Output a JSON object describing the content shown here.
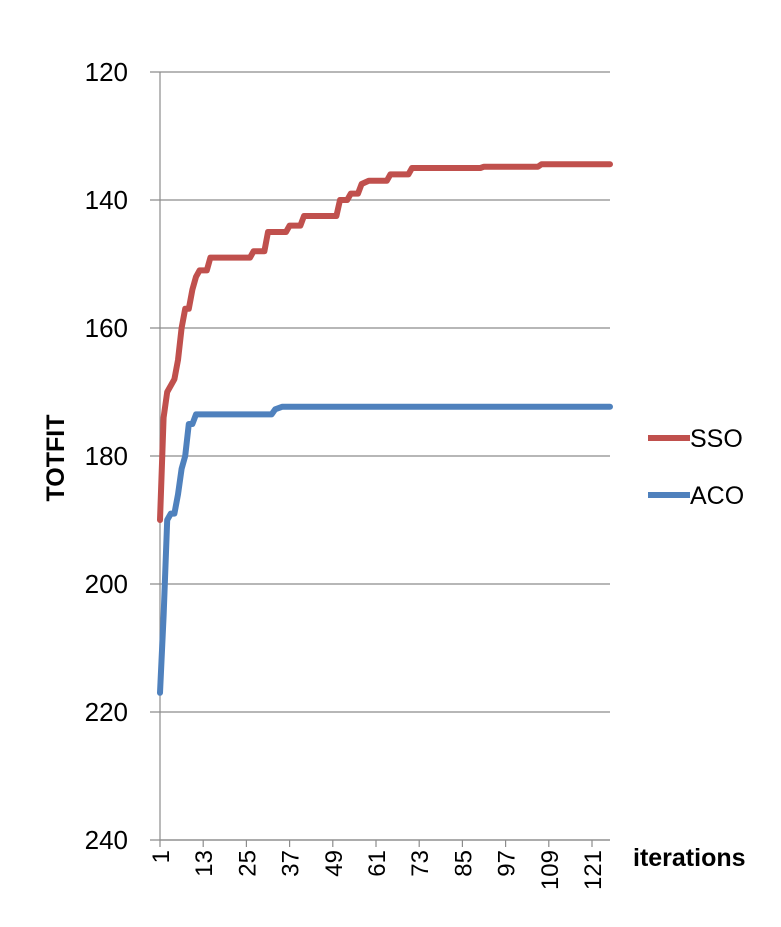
{
  "chart_data": {
    "type": "line",
    "title": "",
    "xlabel": "iterations",
    "ylabel": "TOTFIT",
    "ylim": [
      240,
      120
    ],
    "y_inverted": true,
    "yticks": [
      120,
      140,
      160,
      180,
      200,
      220,
      240
    ],
    "xlim": [
      1,
      126
    ],
    "xticks": [
      1,
      13,
      25,
      37,
      49,
      61,
      73,
      85,
      97,
      109,
      121
    ],
    "grid": "horizontal",
    "legend_position": "right",
    "series": [
      {
        "name": "SSO",
        "color": "#C0504D",
        "points": [
          [
            1,
            190
          ],
          [
            2,
            174
          ],
          [
            3,
            170
          ],
          [
            5,
            168
          ],
          [
            6,
            165
          ],
          [
            7,
            160
          ],
          [
            8,
            157
          ],
          [
            9,
            157
          ],
          [
            10,
            154
          ],
          [
            11,
            152
          ],
          [
            12,
            151
          ],
          [
            14,
            151
          ],
          [
            15,
            149
          ],
          [
            16,
            149
          ],
          [
            26,
            149
          ],
          [
            27,
            148
          ],
          [
            30,
            148
          ],
          [
            31,
            145
          ],
          [
            36,
            145
          ],
          [
            37,
            144
          ],
          [
            40,
            144
          ],
          [
            41,
            142.5
          ],
          [
            50,
            142.5
          ],
          [
            51,
            140
          ],
          [
            53,
            140
          ],
          [
            54,
            139
          ],
          [
            56,
            139
          ],
          [
            57,
            137.5
          ],
          [
            59,
            137
          ],
          [
            64,
            137
          ],
          [
            65,
            136
          ],
          [
            70,
            136
          ],
          [
            71,
            135
          ],
          [
            90,
            135
          ],
          [
            91,
            134.8
          ],
          [
            106,
            134.8
          ],
          [
            107,
            134.4
          ],
          [
            126,
            134.4
          ]
        ]
      },
      {
        "name": "ACO",
        "color": "#4F81BD",
        "points": [
          [
            1,
            217
          ],
          [
            2,
            205
          ],
          [
            3,
            190
          ],
          [
            4,
            189
          ],
          [
            5,
            189
          ],
          [
            6,
            186
          ],
          [
            7,
            182
          ],
          [
            8,
            180
          ],
          [
            9,
            175
          ],
          [
            10,
            175
          ],
          [
            11,
            173.5
          ],
          [
            32,
            173.5
          ],
          [
            33,
            172.7
          ],
          [
            35,
            172.3
          ],
          [
            126,
            172.3
          ]
        ]
      }
    ]
  }
}
